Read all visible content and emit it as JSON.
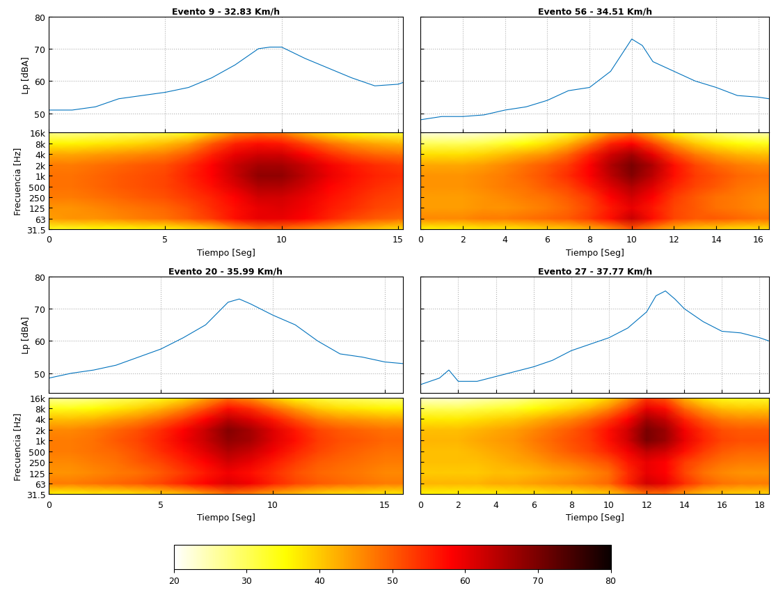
{
  "chart_data": [
    {
      "type": "line",
      "title": "Evento 9 - 32.83 Km/h",
      "ylabel": "Lp [dBA]",
      "x": [
        0,
        1,
        2,
        3,
        4,
        5,
        6,
        7,
        8,
        9,
        9.5,
        10,
        11,
        12,
        13,
        14,
        15,
        15.2
      ],
      "values": [
        51,
        51,
        52,
        54.5,
        55.5,
        56.5,
        58,
        61,
        65,
        70,
        70.5,
        70.5,
        67,
        64,
        61,
        58.5,
        59,
        59.5
      ],
      "color": "#0072bd",
      "xlim": [
        0,
        15.2
      ],
      "xticks": [
        0,
        5,
        10,
        15
      ],
      "ylim": [
        44,
        80
      ],
      "yticks": [
        50,
        60,
        70,
        80
      ],
      "grid": true,
      "tick_labels": "y"
    },
    {
      "type": "heatmap",
      "xlabel": "Tiempo [Seg]",
      "ylabel": "Frecuencia [Hz]",
      "x": [
        0,
        1,
        2,
        3,
        4,
        5,
        6,
        7,
        8,
        9,
        10,
        11,
        12,
        13,
        14,
        15,
        15.2
      ],
      "y": [
        31.5,
        63,
        125,
        250,
        500,
        1000,
        2000,
        4000,
        8000,
        16000
      ],
      "cells": [
        [
          34,
          34,
          35,
          35,
          36,
          36,
          38,
          40,
          45,
          48,
          48,
          46,
          44,
          42,
          40,
          38,
          38
        ],
        [
          44,
          45,
          45,
          46,
          47,
          48,
          50,
          53,
          57,
          60,
          60,
          58,
          55,
          52,
          50,
          49,
          49
        ],
        [
          45,
          45,
          46,
          47,
          48,
          49,
          51,
          54,
          57,
          60,
          61,
          59,
          56,
          54,
          52,
          51,
          51
        ],
        [
          47,
          47,
          48,
          49,
          50,
          51,
          53,
          55,
          58,
          62,
          62,
          60,
          57,
          55,
          53,
          52,
          52
        ],
        [
          48,
          48,
          49,
          50,
          51,
          52,
          54,
          57,
          61,
          65,
          65,
          62,
          58,
          56,
          54,
          53,
          53
        ],
        [
          48,
          48,
          49,
          50,
          51,
          52,
          55,
          58,
          63,
          68,
          68,
          64,
          60,
          57,
          55,
          54,
          54
        ],
        [
          47,
          47,
          48,
          49,
          50,
          51,
          54,
          58,
          63,
          66,
          66,
          63,
          59,
          56,
          54,
          53,
          53
        ],
        [
          43,
          43,
          44,
          45,
          46,
          47,
          50,
          55,
          60,
          62,
          62,
          58,
          54,
          51,
          49,
          48,
          48
        ],
        [
          36,
          36,
          37,
          38,
          39,
          41,
          44,
          50,
          55,
          57,
          56,
          52,
          48,
          45,
          43,
          42,
          42
        ],
        [
          27,
          27,
          28,
          29,
          30,
          31,
          34,
          40,
          46,
          48,
          47,
          42,
          38,
          35,
          33,
          32,
          32
        ]
      ],
      "log": "y",
      "xlim": [
        0,
        15.2
      ],
      "xticks": [
        0,
        5,
        10,
        15
      ],
      "ylim": [
        31.5,
        16000
      ],
      "yticks": [
        31.5,
        63,
        125,
        250,
        500,
        {
          "value": 1000,
          "label": "1k"
        },
        {
          "value": 2000,
          "label": "2k"
        },
        {
          "value": 4000,
          "label": "4k"
        },
        {
          "value": 8000,
          "label": "8k"
        },
        {
          "value": 16000,
          "label": "16k"
        }
      ]
    },
    {
      "type": "line",
      "title": "Evento 56 - 34.51 Km/h",
      "x": [
        0,
        1,
        2,
        3,
        4,
        5,
        6,
        7,
        8,
        9,
        9.5,
        10,
        10.5,
        11,
        12,
        13,
        14,
        15,
        16,
        16.5
      ],
      "values": [
        48,
        49,
        49,
        49.5,
        51,
        52,
        54,
        57,
        58,
        63,
        68,
        73,
        71,
        66,
        63,
        60,
        58,
        55.5,
        55,
        54.5
      ],
      "color": "#0072bd",
      "xlim": [
        0,
        16.5
      ],
      "xticks": [
        0,
        2,
        4,
        6,
        8,
        10,
        12,
        14,
        16
      ],
      "ylim": [
        44,
        80
      ],
      "yticks": [
        50,
        60,
        70,
        80
      ],
      "grid": true,
      "tick_labels": false
    },
    {
      "type": "heatmap",
      "xlabel": "Tiempo [Seg]",
      "x": [
        0,
        1,
        2,
        3,
        4,
        5,
        6,
        7,
        8,
        9,
        10,
        11,
        12,
        13,
        14,
        15,
        16,
        16.5
      ],
      "y": [
        31.5,
        63,
        125,
        250,
        500,
        1000,
        2000,
        4000,
        8000,
        16000
      ],
      "cells": [
        [
          36,
          36,
          36,
          37,
          37,
          38,
          39,
          40,
          42,
          45,
          50,
          46,
          42,
          40,
          39,
          38,
          38,
          38
        ],
        [
          46,
          46,
          46,
          47,
          47,
          48,
          49,
          50,
          53,
          57,
          63,
          57,
          52,
          50,
          50,
          49,
          48,
          48
        ],
        [
          44,
          44,
          44,
          45,
          45,
          46,
          47,
          49,
          52,
          56,
          60,
          56,
          52,
          50,
          48,
          47,
          46,
          46
        ],
        [
          44,
          44,
          44,
          45,
          46,
          47,
          48,
          50,
          53,
          58,
          62,
          58,
          53,
          50,
          48,
          47,
          46,
          46
        ],
        [
          45,
          45,
          45,
          46,
          47,
          48,
          50,
          52,
          56,
          61,
          65,
          61,
          55,
          52,
          50,
          48,
          47,
          47
        ],
        [
          45,
          45,
          45,
          46,
          47,
          49,
          51,
          54,
          58,
          64,
          69,
          64,
          57,
          53,
          51,
          49,
          48,
          48
        ],
        [
          43,
          43,
          43,
          44,
          46,
          48,
          50,
          53,
          58,
          65,
          70,
          65,
          57,
          52,
          49,
          47,
          46,
          46
        ],
        [
          38,
          38,
          38,
          39,
          41,
          43,
          45,
          49,
          55,
          62,
          66,
          60,
          52,
          47,
          44,
          42,
          41,
          41
        ],
        [
          30,
          30,
          30,
          31,
          33,
          35,
          38,
          42,
          48,
          55,
          58,
          52,
          45,
          40,
          37,
          35,
          34,
          34
        ],
        [
          22,
          22,
          22,
          23,
          24,
          26,
          29,
          33,
          39,
          45,
          48,
          42,
          36,
          31,
          28,
          26,
          25,
          25
        ]
      ],
      "log": "y",
      "xlim": [
        0,
        16.5
      ],
      "xticks": [
        0,
        2,
        4,
        6,
        8,
        10,
        12,
        14,
        16
      ],
      "ylim": [
        31.5,
        16000
      ],
      "yticks": [
        31.5,
        63,
        125,
        250,
        500,
        1000,
        2000,
        4000,
        8000,
        16000
      ],
      "tick_labels": "x"
    },
    {
      "type": "line",
      "title": "Evento 20 - 35.99 Km/h",
      "ylabel": "Lp [dBA]",
      "x": [
        0,
        1,
        2,
        3,
        4,
        5,
        6,
        7,
        8,
        8.5,
        9,
        10,
        11,
        12,
        13,
        14,
        15,
        15.8
      ],
      "values": [
        48.5,
        50,
        51,
        52.5,
        55,
        57.5,
        61,
        65,
        72,
        73,
        71.5,
        68,
        65,
        60,
        56,
        55,
        53.5,
        53
      ],
      "color": "#0072bd",
      "xlim": [
        0,
        15.8
      ],
      "xticks": [
        0,
        5,
        10,
        15
      ],
      "ylim": [
        44,
        80
      ],
      "yticks": [
        50,
        60,
        70,
        80
      ],
      "grid": true,
      "tick_labels": "y"
    },
    {
      "type": "heatmap",
      "xlabel": "Tiempo [Seg]",
      "ylabel": "Frecuencia [Hz]",
      "x": [
        0,
        1,
        2,
        3,
        4,
        5,
        6,
        7,
        8,
        9,
        10,
        11,
        12,
        13,
        14,
        15,
        15.8
      ],
      "y": [
        31.5,
        63,
        125,
        250,
        500,
        1000,
        2000,
        4000,
        8000,
        16000
      ],
      "cells": [
        [
          36,
          36,
          37,
          37,
          38,
          39,
          41,
          44,
          48,
          46,
          43,
          41,
          39,
          38,
          38,
          37,
          37
        ],
        [
          47,
          47,
          48,
          49,
          50,
          52,
          55,
          58,
          61,
          59,
          55,
          52,
          50,
          49,
          48,
          47,
          47
        ],
        [
          45,
          45,
          46,
          47,
          48,
          50,
          53,
          56,
          59,
          57,
          54,
          51,
          49,
          48,
          47,
          46,
          46
        ],
        [
          46,
          46,
          47,
          48,
          50,
          52,
          55,
          58,
          62,
          60,
          56,
          53,
          50,
          49,
          48,
          47,
          47
        ],
        [
          47,
          47,
          48,
          49,
          51,
          54,
          57,
          61,
          65,
          63,
          59,
          55,
          52,
          50,
          49,
          48,
          48
        ],
        [
          47,
          47,
          48,
          50,
          52,
          55,
          59,
          63,
          68,
          66,
          61,
          57,
          53,
          51,
          50,
          49,
          49
        ],
        [
          46,
          46,
          47,
          49,
          51,
          54,
          58,
          63,
          69,
          66,
          61,
          56,
          52,
          50,
          49,
          48,
          48
        ],
        [
          41,
          41,
          42,
          44,
          46,
          49,
          53,
          58,
          64,
          61,
          56,
          51,
          47,
          45,
          44,
          43,
          43
        ],
        [
          34,
          34,
          35,
          37,
          39,
          42,
          46,
          51,
          57,
          54,
          49,
          44,
          40,
          38,
          37,
          36,
          36
        ],
        [
          26,
          26,
          27,
          29,
          31,
          34,
          38,
          43,
          48,
          45,
          40,
          35,
          32,
          30,
          29,
          28,
          28
        ]
      ],
      "log": "y",
      "xlim": [
        0,
        15.8
      ],
      "xticks": [
        0,
        5,
        10,
        15
      ],
      "ylim": [
        31.5,
        16000
      ],
      "yticks": [
        31.5,
        63,
        125,
        250,
        500,
        {
          "value": 1000,
          "label": "1k"
        },
        {
          "value": 2000,
          "label": "2k"
        },
        {
          "value": 4000,
          "label": "4k"
        },
        {
          "value": 8000,
          "label": "8k"
        },
        {
          "value": 16000,
          "label": "16k"
        }
      ]
    },
    {
      "type": "line",
      "title": "Evento 27 - 37.77 Km/h",
      "x": [
        0,
        1,
        1.5,
        2,
        3,
        4,
        5,
        6,
        7,
        8,
        9,
        10,
        11,
        12,
        12.5,
        13,
        13.5,
        14,
        15,
        16,
        17,
        18,
        18.5
      ],
      "values": [
        46.5,
        48.5,
        51,
        47.5,
        47.5,
        49,
        50.5,
        52,
        54,
        57,
        59,
        61,
        64,
        69,
        74,
        75.5,
        73,
        70,
        66,
        63,
        62.5,
        61,
        60
      ],
      "color": "#0072bd",
      "xlim": [
        0,
        18.5
      ],
      "xticks": [
        0,
        2,
        4,
        6,
        8,
        10,
        12,
        14,
        16,
        18
      ],
      "ylim": [
        44,
        80
      ],
      "yticks": [
        50,
        60,
        70,
        80
      ],
      "grid": true,
      "tick_labels": false
    },
    {
      "type": "heatmap",
      "xlabel": "Tiempo [Seg]",
      "x": [
        0,
        1,
        2,
        3,
        4,
        5,
        6,
        7,
        8,
        9,
        10,
        11,
        12,
        13,
        14,
        15,
        16,
        17,
        18,
        18.5
      ],
      "y": [
        31.5,
        63,
        125,
        250,
        500,
        1000,
        2000,
        4000,
        8000,
        16000
      ],
      "cells": [
        [
          36,
          36,
          36,
          36,
          36,
          37,
          37,
          38,
          38,
          39,
          40,
          44,
          48,
          48,
          44,
          41,
          40,
          39,
          39,
          39
        ],
        [
          42,
          42,
          42,
          42,
          43,
          43,
          44,
          45,
          46,
          47,
          49,
          55,
          62,
          60,
          54,
          50,
          48,
          47,
          47,
          47
        ],
        [
          40,
          40,
          40,
          40,
          41,
          41,
          42,
          43,
          44,
          46,
          48,
          54,
          60,
          58,
          52,
          48,
          46,
          45,
          45,
          45
        ],
        [
          41,
          41,
          41,
          41,
          42,
          43,
          44,
          46,
          47,
          49,
          51,
          56,
          60,
          58,
          53,
          50,
          48,
          47,
          47,
          47
        ],
        [
          41,
          41,
          41,
          42,
          43,
          44,
          46,
          48,
          50,
          52,
          55,
          59,
          64,
          62,
          57,
          53,
          50,
          49,
          49,
          49
        ],
        [
          42,
          42,
          42,
          43,
          44,
          45,
          47,
          49,
          51,
          53,
          57,
          62,
          70,
          67,
          60,
          55,
          52,
          51,
          51,
          51
        ],
        [
          41,
          41,
          41,
          42,
          43,
          44,
          46,
          48,
          50,
          53,
          57,
          62,
          70,
          67,
          59,
          54,
          51,
          50,
          50,
          50
        ],
        [
          37,
          37,
          37,
          38,
          39,
          40,
          42,
          44,
          46,
          49,
          53,
          58,
          66,
          63,
          55,
          50,
          47,
          46,
          46,
          46
        ],
        [
          30,
          30,
          30,
          31,
          32,
          33,
          35,
          37,
          39,
          42,
          46,
          52,
          60,
          57,
          49,
          44,
          41,
          40,
          40,
          40
        ],
        [
          23,
          23,
          23,
          24,
          25,
          26,
          28,
          30,
          32,
          35,
          39,
          45,
          53,
          50,
          42,
          37,
          34,
          33,
          33,
          33
        ]
      ],
      "log": "y",
      "xlim": [
        0,
        18.5
      ],
      "xticks": [
        0,
        2,
        4,
        6,
        8,
        10,
        12,
        14,
        16,
        18
      ],
      "ylim": [
        31.5,
        16000
      ],
      "yticks": [
        31.5,
        63,
        125,
        250,
        500,
        1000,
        2000,
        4000,
        8000,
        16000
      ],
      "tick_labels": "x"
    }
  ],
  "colorbar": {
    "clim": [
      20,
      80
    ],
    "ticks": [
      20,
      30,
      40,
      50,
      60,
      70,
      80
    ]
  }
}
